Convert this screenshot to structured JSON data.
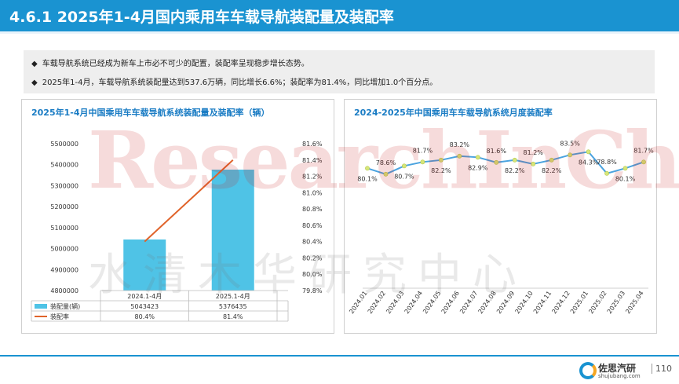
{
  "header": {
    "title": "4.6.1 2025年1-4月国内乘用车车载导航装配量及装配率"
  },
  "bullets": [
    "车载导航系统已经成为新车上市必不可少的配置，装配率呈现稳步增长态势。",
    "2025年1-4月，车载导航系统装配量达到537.6万辆，同比增长6.6%；装配率为81.4%，同比增加1.0个百分点。"
  ],
  "bullet_mark": "◆",
  "watermark": {
    "en": "ResearchInChina",
    "cn": "水清木华研究中心"
  },
  "footer": {
    "brand_cn": "佐思汽研",
    "brand_en": "shujubang.com",
    "page": "110"
  },
  "colors": {
    "accent": "#1a93d1",
    "bar": "#4fc3e6",
    "line_left": "#e0632a",
    "line_right": "#4aa3df",
    "point": "#d6e67a"
  },
  "chart_data": [
    {
      "type": "bar",
      "title": "2025年1-4月中国乘用车车载导航系统装配量及装配率（辆）",
      "categories": [
        "2024.1-4月",
        "2025.1-4月"
      ],
      "series": [
        {
          "name": "装配量(辆)",
          "kind": "bar",
          "axis": "left",
          "values": [
            5043423,
            5376435
          ],
          "labels": [
            "5043423",
            "5376435"
          ]
        },
        {
          "name": "装配率",
          "kind": "line",
          "axis": "right",
          "values": [
            80.4,
            81.4
          ],
          "labels": [
            "80.4%",
            "81.4%"
          ]
        }
      ],
      "y_left": {
        "min": 4800000,
        "max": 5500000,
        "ticks": [
          "5500000",
          "5400000",
          "5300000",
          "5200000",
          "5100000",
          "5000000",
          "4900000",
          "4800000"
        ]
      },
      "y_right": {
        "min": 79.8,
        "max": 81.6,
        "ticks": [
          "81.6%",
          "81.4%",
          "81.2%",
          "81.0%",
          "80.8%",
          "80.6%",
          "80.4%",
          "80.2%",
          "80.0%",
          "79.8%"
        ]
      },
      "data_table": true
    },
    {
      "type": "line",
      "title": "2024-2025年中国乘用车车载导航系统月度装配率",
      "x": [
        "2024.01",
        "2024.02",
        "2024.03",
        "2024.04",
        "2024.05",
        "2024.06",
        "2024.07",
        "2024.08",
        "2024.09",
        "2024.10",
        "2024.11",
        "2024.12",
        "2025.01",
        "2025.02",
        "2025.03",
        "2025.04"
      ],
      "values": [
        80.1,
        78.6,
        80.7,
        81.7,
        82.2,
        83.2,
        82.9,
        81.6,
        82.2,
        81.2,
        82.2,
        83.5,
        84.3,
        78.8,
        80.1,
        81.7
      ],
      "labels": [
        "80.1%",
        "78.6%",
        "80.7%",
        "81.7%",
        "82.2%",
        "83.2%",
        "82.9%",
        "81.6%",
        "82.2%",
        "81.2%",
        "82.2%",
        "83.5%",
        "84.3%",
        "78.8%",
        "80.1%",
        "81.7%"
      ],
      "label_pos": [
        "below",
        "above",
        "below",
        "above",
        "below",
        "above",
        "below",
        "above",
        "below",
        "above",
        "below",
        "above",
        "below",
        "above",
        "below",
        "above"
      ]
    }
  ]
}
